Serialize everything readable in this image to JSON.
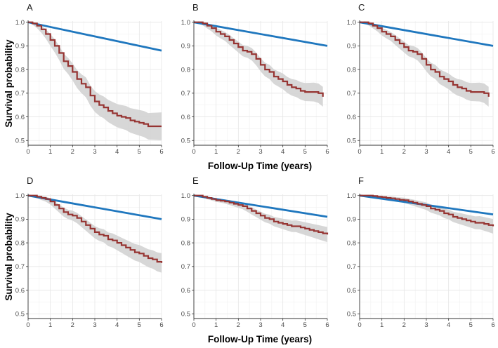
{
  "figure": {
    "ylabel": "Survival probability",
    "xlabel": "Follow-Up Time (years)"
  },
  "colors": {
    "observed": "#963432",
    "expected": "#1f77be",
    "ci": "#d3d3d3",
    "grid": "#e6e6e6",
    "axis": "#333333"
  },
  "chart_data": [
    {
      "label": "A",
      "type": "line",
      "xlim": [
        0,
        6
      ],
      "ylim": [
        0.48,
        1.005
      ],
      "xticks": [
        0,
        1,
        2,
        3,
        4,
        5,
        6
      ],
      "yticks": [
        0.5,
        0.6,
        0.7,
        0.8,
        0.9,
        1.0
      ],
      "expected": {
        "x": [
          0,
          6
        ],
        "y": [
          1.0,
          0.88
        ]
      },
      "observed": {
        "x": [
          0,
          0.2,
          0.4,
          0.6,
          0.8,
          1.0,
          1.2,
          1.4,
          1.6,
          1.8,
          2.0,
          2.2,
          2.4,
          2.6,
          2.8,
          3.0,
          3.2,
          3.4,
          3.6,
          3.8,
          4.0,
          4.2,
          4.4,
          4.6,
          4.8,
          5.0,
          5.2,
          5.4,
          5.6,
          5.8,
          6.0
        ],
        "y": [
          1.0,
          0.995,
          0.985,
          0.97,
          0.95,
          0.925,
          0.9,
          0.87,
          0.835,
          0.815,
          0.79,
          0.76,
          0.74,
          0.725,
          0.69,
          0.665,
          0.65,
          0.64,
          0.625,
          0.615,
          0.605,
          0.6,
          0.595,
          0.585,
          0.58,
          0.575,
          0.57,
          0.56,
          0.56,
          0.56,
          0.56
        ],
        "ci_halfwidth": [
          0.0,
          0.005,
          0.01,
          0.015,
          0.02,
          0.025,
          0.028,
          0.03,
          0.032,
          0.034,
          0.036,
          0.038,
          0.04,
          0.042,
          0.043,
          0.044,
          0.045,
          0.046,
          0.047,
          0.048,
          0.049,
          0.05,
          0.051,
          0.052,
          0.053,
          0.054,
          0.055,
          0.056,
          0.057,
          0.058,
          0.059
        ]
      }
    },
    {
      "label": "B",
      "type": "line",
      "xlim": [
        0,
        6
      ],
      "ylim": [
        0.48,
        1.005
      ],
      "xticks": [
        0,
        1,
        2,
        3,
        4,
        5,
        6
      ],
      "yticks": [
        0.5,
        0.6,
        0.7,
        0.8,
        0.9,
        1.0
      ],
      "expected": {
        "x": [
          0,
          6
        ],
        "y": [
          1.0,
          0.9
        ]
      },
      "observed": {
        "x": [
          0,
          0.2,
          0.4,
          0.6,
          0.8,
          1.0,
          1.2,
          1.4,
          1.6,
          1.8,
          2.0,
          2.2,
          2.4,
          2.6,
          2.8,
          3.0,
          3.2,
          3.4,
          3.6,
          3.8,
          4.0,
          4.2,
          4.4,
          4.6,
          4.8,
          5.0,
          5.2,
          5.4,
          5.6,
          5.8
        ],
        "y": [
          1.0,
          1.0,
          0.995,
          0.985,
          0.975,
          0.96,
          0.95,
          0.94,
          0.925,
          0.91,
          0.895,
          0.88,
          0.875,
          0.865,
          0.845,
          0.82,
          0.8,
          0.79,
          0.77,
          0.76,
          0.75,
          0.735,
          0.725,
          0.72,
          0.71,
          0.705,
          0.705,
          0.705,
          0.7,
          0.685
        ],
        "ci_halfwidth": [
          0.0,
          0.004,
          0.008,
          0.011,
          0.014,
          0.016,
          0.018,
          0.019,
          0.021,
          0.022,
          0.023,
          0.024,
          0.025,
          0.026,
          0.027,
          0.028,
          0.029,
          0.03,
          0.031,
          0.032,
          0.033,
          0.034,
          0.035,
          0.036,
          0.037,
          0.038,
          0.039,
          0.04,
          0.041,
          0.042
        ]
      }
    },
    {
      "label": "C",
      "type": "line",
      "xlim": [
        0,
        6
      ],
      "ylim": [
        0.48,
        1.005
      ],
      "xticks": [
        0,
        1,
        2,
        3,
        4,
        5,
        6
      ],
      "yticks": [
        0.5,
        0.6,
        0.7,
        0.8,
        0.9,
        1.0
      ],
      "expected": {
        "x": [
          0,
          6
        ],
        "y": [
          1.0,
          0.9
        ]
      },
      "observed": {
        "x": [
          0,
          0.2,
          0.4,
          0.6,
          0.8,
          1.0,
          1.2,
          1.4,
          1.6,
          1.8,
          2.0,
          2.2,
          2.4,
          2.6,
          2.8,
          3.0,
          3.2,
          3.4,
          3.6,
          3.8,
          4.0,
          4.2,
          4.4,
          4.6,
          4.8,
          5.0,
          5.2,
          5.4,
          5.6,
          5.8
        ],
        "y": [
          1.0,
          1.0,
          0.995,
          0.985,
          0.975,
          0.96,
          0.95,
          0.94,
          0.925,
          0.91,
          0.895,
          0.88,
          0.875,
          0.865,
          0.845,
          0.82,
          0.8,
          0.79,
          0.77,
          0.76,
          0.75,
          0.735,
          0.725,
          0.72,
          0.71,
          0.705,
          0.705,
          0.705,
          0.7,
          0.685
        ],
        "ci_halfwidth": [
          0.0,
          0.004,
          0.008,
          0.011,
          0.014,
          0.016,
          0.018,
          0.019,
          0.021,
          0.022,
          0.023,
          0.024,
          0.025,
          0.026,
          0.027,
          0.028,
          0.029,
          0.03,
          0.031,
          0.032,
          0.033,
          0.034,
          0.035,
          0.036,
          0.037,
          0.038,
          0.039,
          0.04,
          0.041,
          0.042
        ]
      }
    },
    {
      "label": "D",
      "type": "line",
      "xlim": [
        0,
        6
      ],
      "ylim": [
        0.48,
        1.005
      ],
      "xticks": [
        0,
        1,
        2,
        3,
        4,
        5,
        6
      ],
      "yticks": [
        0.5,
        0.6,
        0.7,
        0.8,
        0.9,
        1.0
      ],
      "expected": {
        "x": [
          0,
          6
        ],
        "y": [
          1.0,
          0.9
        ]
      },
      "observed": {
        "x": [
          0,
          0.2,
          0.4,
          0.6,
          0.8,
          1.0,
          1.2,
          1.4,
          1.6,
          1.8,
          2.0,
          2.2,
          2.4,
          2.6,
          2.8,
          3.0,
          3.2,
          3.4,
          3.6,
          3.8,
          4.0,
          4.2,
          4.4,
          4.6,
          4.8,
          5.0,
          5.2,
          5.4,
          5.6,
          5.8,
          6.0
        ],
        "y": [
          1.0,
          1.0,
          0.995,
          0.99,
          0.985,
          0.975,
          0.96,
          0.945,
          0.93,
          0.92,
          0.915,
          0.905,
          0.89,
          0.875,
          0.86,
          0.845,
          0.835,
          0.83,
          0.815,
          0.81,
          0.8,
          0.79,
          0.78,
          0.77,
          0.76,
          0.755,
          0.745,
          0.735,
          0.73,
          0.72,
          0.715
        ],
        "ci_halfwidth": [
          0.0,
          0.003,
          0.006,
          0.009,
          0.011,
          0.013,
          0.015,
          0.017,
          0.019,
          0.02,
          0.021,
          0.022,
          0.023,
          0.024,
          0.025,
          0.026,
          0.027,
          0.028,
          0.029,
          0.03,
          0.031,
          0.032,
          0.033,
          0.034,
          0.035,
          0.036,
          0.037,
          0.038,
          0.039,
          0.04,
          0.041
        ]
      }
    },
    {
      "label": "E",
      "type": "line",
      "xlim": [
        0,
        6
      ],
      "ylim": [
        0.48,
        1.005
      ],
      "xticks": [
        0,
        1,
        2,
        3,
        4,
        5,
        6
      ],
      "yticks": [
        0.5,
        0.6,
        0.7,
        0.8,
        0.9,
        1.0
      ],
      "expected": {
        "x": [
          0,
          6
        ],
        "y": [
          1.0,
          0.91
        ]
      },
      "observed": {
        "x": [
          0,
          0.2,
          0.4,
          0.6,
          0.8,
          1.0,
          1.2,
          1.4,
          1.6,
          1.8,
          2.0,
          2.2,
          2.4,
          2.6,
          2.8,
          3.0,
          3.2,
          3.4,
          3.6,
          3.8,
          4.0,
          4.2,
          4.4,
          4.6,
          4.8,
          5.0,
          5.2,
          5.4,
          5.6,
          5.8,
          6.0
        ],
        "y": [
          1.0,
          1.0,
          0.995,
          0.99,
          0.985,
          0.98,
          0.978,
          0.975,
          0.97,
          0.965,
          0.96,
          0.955,
          0.945,
          0.935,
          0.925,
          0.915,
          0.905,
          0.9,
          0.89,
          0.885,
          0.88,
          0.875,
          0.87,
          0.87,
          0.865,
          0.86,
          0.855,
          0.85,
          0.845,
          0.84,
          0.835
        ],
        "ci_halfwidth": [
          0.0,
          0.002,
          0.004,
          0.005,
          0.006,
          0.007,
          0.008,
          0.009,
          0.01,
          0.011,
          0.012,
          0.013,
          0.014,
          0.015,
          0.016,
          0.017,
          0.018,
          0.019,
          0.02,
          0.021,
          0.022,
          0.023,
          0.024,
          0.025,
          0.026,
          0.027,
          0.028,
          0.029,
          0.03,
          0.031,
          0.032
        ]
      }
    },
    {
      "label": "F",
      "type": "line",
      "xlim": [
        0,
        6
      ],
      "ylim": [
        0.48,
        1.005
      ],
      "xticks": [
        0,
        1,
        2,
        3,
        4,
        5,
        6
      ],
      "yticks": [
        0.5,
        0.6,
        0.7,
        0.8,
        0.9,
        1.0
      ],
      "expected": {
        "x": [
          0,
          6
        ],
        "y": [
          1.0,
          0.92
        ]
      },
      "observed": {
        "x": [
          0,
          0.2,
          0.4,
          0.6,
          0.8,
          1.0,
          1.2,
          1.4,
          1.6,
          1.8,
          2.0,
          2.2,
          2.4,
          2.6,
          2.8,
          3.0,
          3.2,
          3.4,
          3.6,
          3.8,
          4.0,
          4.2,
          4.4,
          4.6,
          4.8,
          5.0,
          5.2,
          5.4,
          5.6,
          5.8,
          6.0
        ],
        "y": [
          1.0,
          1.0,
          1.0,
          0.998,
          0.995,
          0.993,
          0.99,
          0.988,
          0.985,
          0.982,
          0.98,
          0.975,
          0.97,
          0.965,
          0.96,
          0.955,
          0.945,
          0.94,
          0.935,
          0.925,
          0.92,
          0.91,
          0.905,
          0.9,
          0.895,
          0.89,
          0.885,
          0.885,
          0.88,
          0.875,
          0.87
        ],
        "ci_halfwidth": [
          0.0,
          0.002,
          0.003,
          0.004,
          0.005,
          0.006,
          0.007,
          0.008,
          0.009,
          0.01,
          0.011,
          0.012,
          0.013,
          0.014,
          0.015,
          0.016,
          0.017,
          0.018,
          0.019,
          0.02,
          0.021,
          0.022,
          0.023,
          0.024,
          0.025,
          0.026,
          0.027,
          0.028,
          0.029,
          0.03,
          0.031
        ]
      }
    }
  ]
}
